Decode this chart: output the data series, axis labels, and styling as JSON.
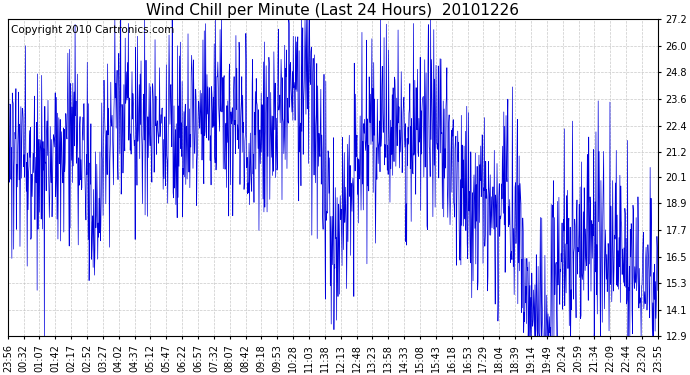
{
  "title": "Wind Chill per Minute (Last 24 Hours)  20101226",
  "copyright": "Copyright 2010 Cartronics.com",
  "line_color": "#0000dd",
  "background_color": "#ffffff",
  "plot_bg_color": "#ffffff",
  "grid_color": "#bbbbbb",
  "grid_linestyle": "--",
  "ylim": [
    12.9,
    27.2
  ],
  "yticks": [
    12.9,
    14.1,
    15.3,
    16.5,
    17.7,
    18.9,
    20.1,
    21.2,
    22.4,
    23.6,
    24.8,
    26.0,
    27.2
  ],
  "xtick_labels": [
    "23:56",
    "00:32",
    "01:07",
    "01:42",
    "02:17",
    "02:52",
    "03:27",
    "04:02",
    "04:37",
    "05:12",
    "05:47",
    "06:22",
    "06:57",
    "07:32",
    "08:07",
    "08:42",
    "09:18",
    "09:53",
    "10:28",
    "11:03",
    "11:38",
    "12:13",
    "12:48",
    "13:23",
    "13:58",
    "14:33",
    "15:08",
    "15:43",
    "16:18",
    "16:53",
    "17:29",
    "18:04",
    "18:39",
    "19:14",
    "19:49",
    "20:24",
    "20:59",
    "21:34",
    "22:09",
    "22:44",
    "23:20",
    "23:55"
  ],
  "title_fontsize": 11,
  "tick_fontsize": 7,
  "copyright_fontsize": 7.5,
  "base_mean": [
    21.5,
    21.3,
    21.0,
    20.8,
    20.5,
    20.3,
    20.2,
    20.4,
    20.6,
    21.0,
    21.3,
    21.5,
    21.8,
    22.0,
    22.3,
    22.5,
    22.6,
    22.8,
    23.0,
    23.2,
    23.3,
    23.1,
    22.8,
    22.5,
    22.3,
    22.0,
    21.8,
    21.6,
    21.3,
    21.0,
    20.8,
    20.7,
    20.5,
    20.4,
    20.5,
    20.6,
    20.8,
    21.0,
    21.2,
    21.3,
    21.2,
    21.0,
    20.8,
    20.6,
    20.5,
    20.4,
    20.3,
    20.4,
    20.5,
    20.6,
    20.7,
    20.8,
    21.0,
    21.2,
    21.4,
    21.5,
    21.4,
    21.2,
    21.0,
    20.9,
    20.8,
    20.7,
    20.6,
    20.5,
    20.5,
    20.4,
    20.3,
    20.2,
    20.1,
    20.0,
    19.8,
    19.6,
    19.5,
    19.3,
    19.2,
    19.1,
    19.0,
    18.9,
    18.8,
    18.7,
    18.6,
    18.5,
    18.5,
    18.5,
    18.6,
    18.7,
    18.8,
    18.9,
    19.0,
    19.1,
    19.2,
    19.1,
    19.0,
    18.8,
    18.6,
    18.4,
    18.2,
    18.0,
    17.8,
    17.7,
    17.6,
    17.5,
    17.4,
    17.3,
    17.2,
    17.1,
    17.0,
    16.9,
    16.9,
    16.9,
    17.0,
    17.1,
    17.2,
    17.2,
    17.1,
    16.9,
    16.8,
    16.7,
    16.6,
    16.5
  ],
  "noise_std": 2.2,
  "seed": 1234
}
